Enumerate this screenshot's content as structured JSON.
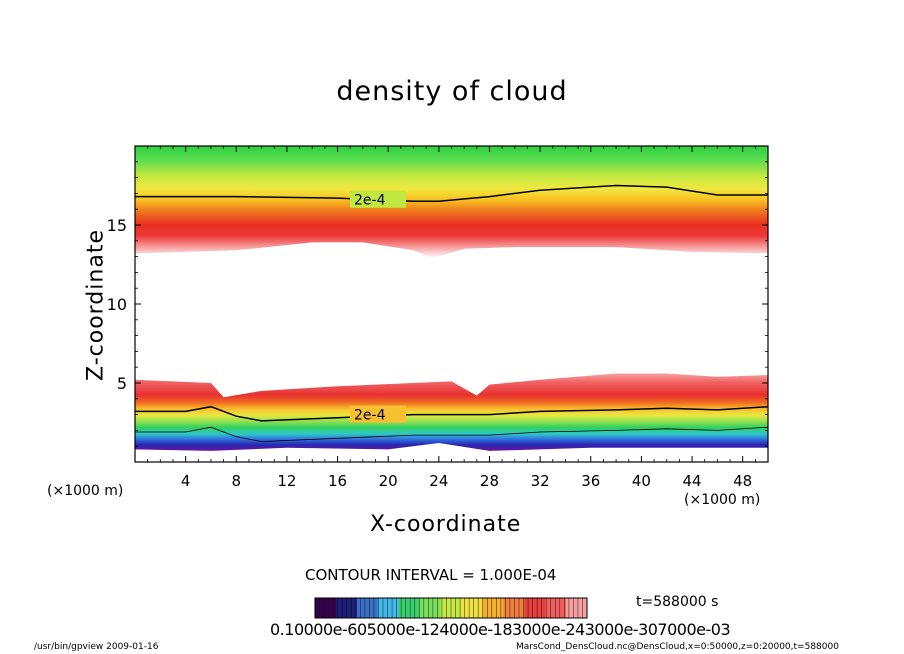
{
  "chart_data": {
    "type": "heatmap",
    "title": "density of cloud",
    "xlabel": "X-coordinate",
    "ylabel": "Z-coordinate",
    "x_unit_left": "(×1000 m)",
    "x_unit_right": "(×1000 m)",
    "xlim": [
      0,
      50
    ],
    "ylim": [
      0,
      20
    ],
    "x_ticks": [
      4,
      8,
      12,
      16,
      20,
      24,
      28,
      32,
      36,
      40,
      44,
      48
    ],
    "y_ticks": [
      5,
      10,
      15
    ],
    "contour_labels": [
      "2e-4",
      "2e-4"
    ],
    "contour_label_positions": [
      [
        17.3,
        16.6
      ],
      [
        17.3,
        3.0
      ]
    ],
    "contour_lines": [
      {
        "name": "upper 2e-4",
        "points": [
          [
            0,
            16.8
          ],
          [
            8,
            16.8
          ],
          [
            16,
            16.7
          ],
          [
            22,
            16.5
          ],
          [
            24,
            16.5
          ],
          [
            28,
            16.8
          ],
          [
            32,
            17.2
          ],
          [
            38,
            17.5
          ],
          [
            42,
            17.4
          ],
          [
            46,
            16.9
          ],
          [
            50,
            16.9
          ]
        ]
      },
      {
        "name": "lower 2e-4",
        "points": [
          [
            0,
            3.2
          ],
          [
            4,
            3.2
          ],
          [
            6,
            3.5
          ],
          [
            8,
            2.9
          ],
          [
            10,
            2.6
          ],
          [
            16,
            2.8
          ],
          [
            22,
            3.0
          ],
          [
            24,
            3.0
          ],
          [
            28,
            3.0
          ],
          [
            32,
            3.2
          ],
          [
            38,
            3.3
          ],
          [
            42,
            3.4
          ],
          [
            46,
            3.3
          ],
          [
            50,
            3.5
          ]
        ]
      }
    ],
    "upper_cloud": {
      "bottom": [
        [
          0,
          13.2
        ],
        [
          8,
          13.4
        ],
        [
          14,
          13.9
        ],
        [
          18,
          13.9
        ],
        [
          22,
          13.4
        ],
        [
          23.5,
          12.9
        ],
        [
          26,
          13.5
        ],
        [
          30,
          13.6
        ],
        [
          38,
          13.6
        ],
        [
          44,
          13.3
        ],
        [
          50,
          13.2
        ]
      ],
      "top": 20,
      "max_z": [
        [
          0,
          14.7
        ],
        [
          10,
          15.0
        ],
        [
          16,
          15.1
        ],
        [
          20,
          14.6
        ],
        [
          23.5,
          14.1
        ],
        [
          27,
          14.9
        ],
        [
          34,
          15.4
        ],
        [
          40,
          15.4
        ],
        [
          46,
          14.7
        ],
        [
          50,
          14.6
        ]
      ]
    },
    "lower_cloud": {
      "top": [
        [
          0,
          5.2
        ],
        [
          6,
          5.0
        ],
        [
          7,
          4.1
        ],
        [
          10,
          4.5
        ],
        [
          16,
          4.8
        ],
        [
          22,
          5.0
        ],
        [
          25,
          5.1
        ],
        [
          27,
          4.2
        ],
        [
          28,
          4.9
        ],
        [
          32,
          5.2
        ],
        [
          38,
          5.6
        ],
        [
          42,
          5.6
        ],
        [
          46,
          5.4
        ],
        [
          50,
          5.5
        ]
      ],
      "bottom": [
        [
          0,
          0.8
        ],
        [
          6,
          0.7
        ],
        [
          12,
          0.9
        ],
        [
          20,
          0.8
        ],
        [
          24,
          1.2
        ],
        [
          28,
          0.7
        ],
        [
          36,
          0.9
        ],
        [
          44,
          0.9
        ],
        [
          50,
          0.9
        ]
      ],
      "max_z": [
        [
          0,
          4.1
        ],
        [
          6,
          3.8
        ],
        [
          8,
          3.7
        ],
        [
          16,
          4.0
        ],
        [
          24,
          4.1
        ],
        [
          27,
          3.9
        ],
        [
          30,
          4.2
        ],
        [
          38,
          4.4
        ],
        [
          44,
          4.5
        ],
        [
          50,
          4.5
        ]
      ]
    },
    "colorbar": {
      "label_text": "0.10000e-605000e-124000e-183000e-243000e-307000e-03",
      "colors": [
        "#3a0050",
        "#20207a",
        "#3a70c8",
        "#46b8e8",
        "#3ad070",
        "#7ae05a",
        "#c8e84a",
        "#f0e040",
        "#f8b030",
        "#f08040",
        "#e84040",
        "#f06060",
        "#f8a0a0"
      ]
    },
    "contour_interval": "CONTOUR INTERVAL = 1.000E-04",
    "time": "t=588000  s"
  },
  "footer": {
    "left": "/usr/bin/gpview   2009-01-16",
    "right": "MarsCond_DensCloud.nc@DensCloud,x=0:50000,z=0:20000,t=588000"
  }
}
